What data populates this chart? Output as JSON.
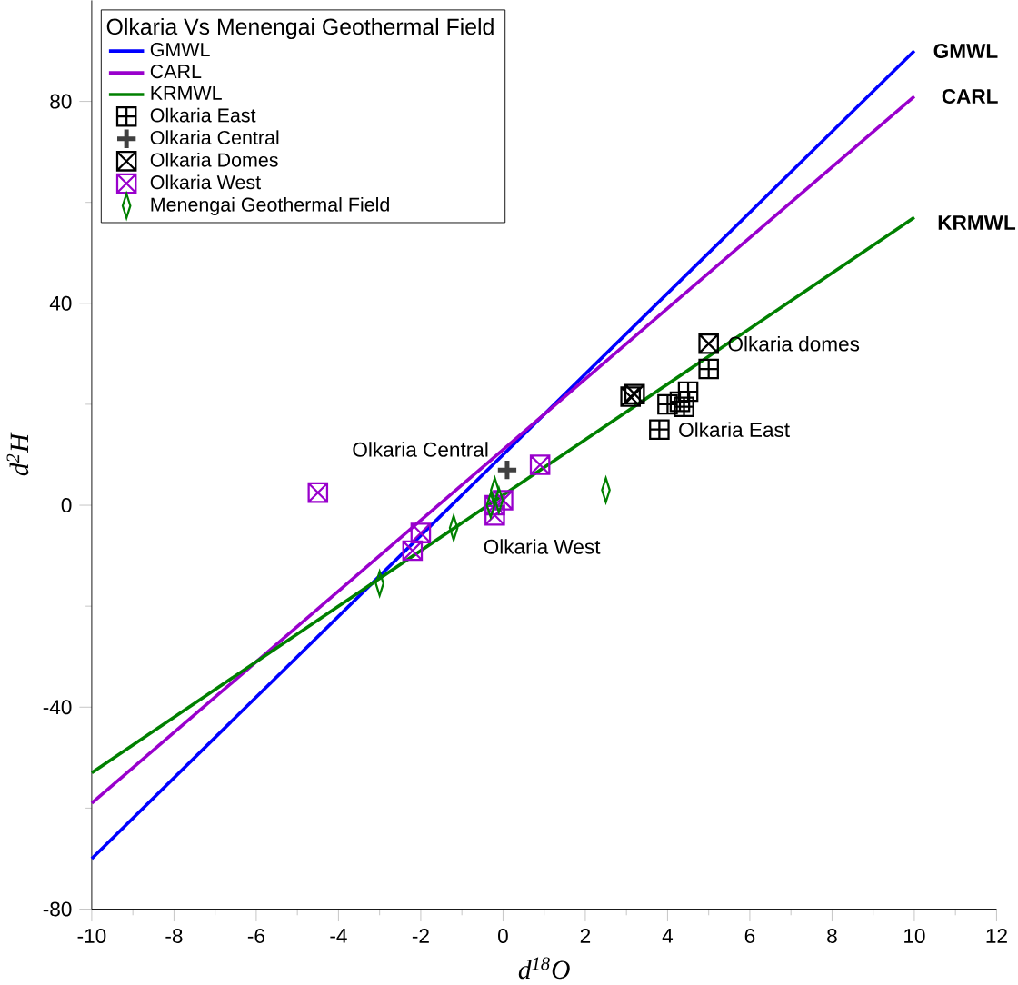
{
  "chart_data": {
    "type": "scatter",
    "xlabel": "d$^{18}$O",
    "ylabel": "d$^{2}$H",
    "legend_title": "Olkaria Vs Menengai Geothermal Field",
    "xlim": [
      -10,
      12
    ],
    "ylim": [
      -80,
      100
    ],
    "xticks": [
      -10,
      -8,
      -6,
      -4,
      -2,
      0,
      2,
      4,
      6,
      8,
      10,
      12
    ],
    "yticks": [
      -80,
      -40,
      0,
      40,
      80
    ],
    "grid": false,
    "legend": "top left",
    "series": [
      {
        "name": "GMWL",
        "type": "line",
        "color": "#0000ff",
        "x": [
          -10,
          10
        ],
        "values": [
          -70,
          90
        ]
      },
      {
        "name": "CARL",
        "type": "line",
        "color": "#9900cc",
        "x": [
          -10,
          10
        ],
        "values": [
          -59,
          81
        ]
      },
      {
        "name": "KRMWL",
        "type": "line",
        "color": "#008000",
        "x": [
          -10,
          10
        ],
        "values": [
          -53,
          57
        ]
      },
      {
        "name": "Olkaria East",
        "marker": "cross",
        "color": "#000000",
        "x": [
          5.0,
          4.5,
          4.3,
          4.0,
          3.8,
          4.4
        ],
        "values": [
          27,
          22.5,
          20.5,
          20,
          15,
          19.5
        ]
      },
      {
        "name": "Olkaria Central",
        "marker": "plus",
        "color": "#404040",
        "x": [
          0.1
        ],
        "values": [
          7
        ]
      },
      {
        "name": "Olkaria Domes",
        "color": "#000000",
        "x": [
          5.0,
          3.2,
          3.1
        ],
        "values": [
          32,
          22,
          21.5
        ]
      },
      {
        "name": "Olkaria West",
        "color": "#9900cc",
        "x": [
          0.9,
          -4.5,
          -0.2,
          0.0,
          -0.2,
          -2.0,
          -2.2
        ],
        "values": [
          8,
          2.5,
          0,
          1,
          -2,
          -5.5,
          -9
        ]
      },
      {
        "name": "Menengai Geothermal Field",
        "marker": "diamond",
        "color": "#008000",
        "x": [
          2.5,
          -0.2,
          -0.1,
          -0.3,
          -1.2,
          -3.0
        ],
        "values": [
          3,
          3,
          1,
          0,
          -4.5,
          -15.5
        ]
      }
    ],
    "annotations": [
      {
        "text": "**GMWL**",
        "x": 10,
        "y": 90
      },
      {
        "text": "**CARL**",
        "x": 10.2,
        "y": 81
      },
      {
        "text": "**KRMWL**",
        "x": 10.1,
        "y": 56
      },
      {
        "text": "Olkaria domes",
        "x": 5.0,
        "y": 32
      },
      {
        "text": "Olkaria East",
        "x": 3.8,
        "y": 15
      },
      "Olkaria Central",
      "Olkaria West"
    ]
  }
}
